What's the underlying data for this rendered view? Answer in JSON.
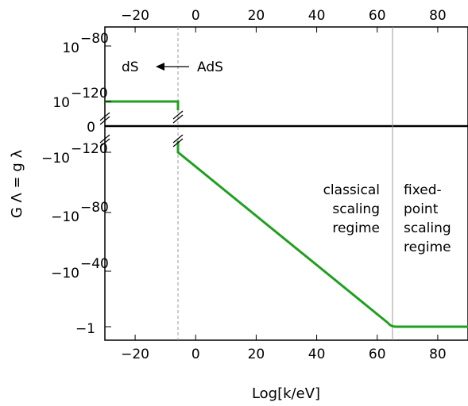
{
  "chart_data": {
    "type": "line",
    "title": "",
    "xlabel": "Log[k/eV]",
    "ylabel": "G Λ = g λ",
    "xlim": [
      -30,
      90
    ],
    "x_ticks": [
      -20,
      0,
      20,
      40,
      60,
      80
    ],
    "x_tick_labels": [
      "−20",
      "0",
      "20",
      "40",
      "60",
      "80"
    ],
    "y_tick_labels": [
      {
        "base": "10",
        "exp": "−80",
        "value": "1e-80"
      },
      {
        "base": "10",
        "exp": "−120",
        "value": "1e-120"
      },
      {
        "base": "0",
        "exp": "",
        "value": "0"
      },
      {
        "base": "−10",
        "exp": "−120",
        "value": "-1e-120"
      },
      {
        "base": "−10",
        "exp": "−80",
        "value": "-1e-80"
      },
      {
        "base": "−10",
        "exp": "−40",
        "value": "-1e-40"
      },
      {
        "base": "−1",
        "exp": "",
        "value": "-1"
      }
    ],
    "series": [
      {
        "color": "#1fa01f",
        "segments": [
          {
            "x": [
              -30,
              -6
            ],
            "y": [
              "1e-120",
              "1e-120"
            ]
          },
          {
            "x": [
              -6,
              -6,
              65,
              66,
              90
            ],
            "y": [
              "-1e-120",
              "-1e-127",
              "-1e-3",
              "-1",
              "-1"
            ]
          }
        ]
      }
    ],
    "vertical_lines": [
      {
        "x": -6,
        "style": "dashed",
        "color": "#999999"
      },
      {
        "x": 65,
        "style": "solid",
        "color": "#999999"
      }
    ],
    "zero_line": true,
    "annotations": {
      "ds": "dS",
      "ads": "AdS",
      "classical": [
        "classical",
        "scaling",
        "regime"
      ],
      "fixed": [
        "fixed-",
        "point",
        "scaling",
        "regime"
      ]
    },
    "grid": false,
    "legend": "none"
  }
}
